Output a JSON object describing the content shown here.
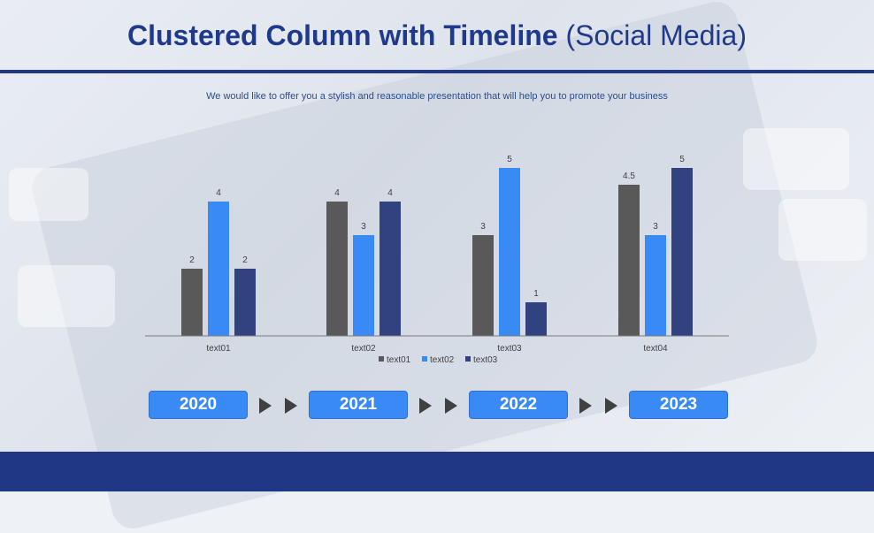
{
  "page": {
    "title_bold": "Clustered Column with Timeline",
    "title_light": "(Social Media)",
    "subtitle": "We would like to offer you a stylish and reasonable presentation that will help you to promote your business"
  },
  "chart_data": {
    "type": "bar",
    "categories": [
      "text01",
      "text02",
      "text03",
      "text04"
    ],
    "series": [
      {
        "name": "text01",
        "values": [
          2,
          4,
          3,
          4.5
        ],
        "color": "#595959"
      },
      {
        "name": "text02",
        "values": [
          4,
          3,
          5,
          3
        ],
        "color": "#3a8af5"
      },
      {
        "name": "text03",
        "values": [
          2,
          4,
          1,
          5
        ],
        "color": "#30427f"
      }
    ],
    "data_labels": [
      [
        "2",
        "4",
        "3",
        "4.5"
      ],
      [
        "4",
        "3",
        "5",
        "3"
      ],
      [
        "2",
        "4",
        "1",
        "5"
      ]
    ],
    "ylim": [
      0,
      5
    ],
    "legend_position": "bottom",
    "grid": false
  },
  "timeline": {
    "years": [
      "2020",
      "2021",
      "2022",
      "2023"
    ],
    "arrow_color": "#404040",
    "button_color": "#3a8af5"
  },
  "colors": {
    "brand": "#1f3784",
    "title": "#1f3a8a"
  }
}
